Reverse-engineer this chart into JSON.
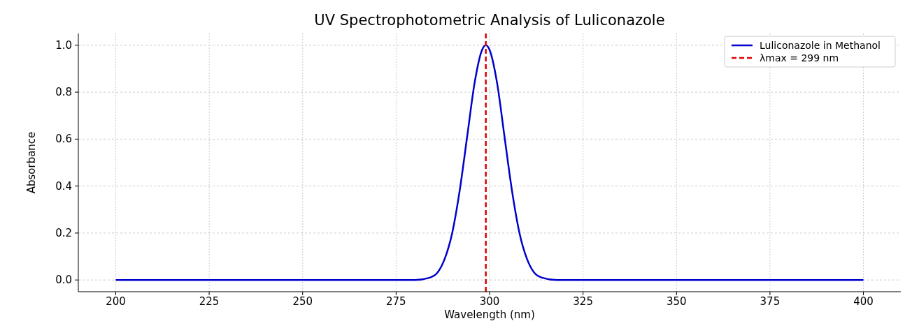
{
  "chart_data": {
    "type": "line",
    "title": "UV Spectrophotometric Analysis of Luliconazole",
    "xlabel": "Wavelength (nm)",
    "ylabel": "Absorbance",
    "x": [
      200,
      280,
      284,
      286,
      288,
      290,
      292,
      294,
      296,
      298,
      299,
      300,
      302,
      304,
      306,
      308,
      310,
      312,
      314,
      318,
      400
    ],
    "series": [
      {
        "name": "Luliconazole in Methanol",
        "color": "#0000cc",
        "values": [
          0,
          0,
          0.01,
          0.03,
          0.09,
          0.2,
          0.38,
          0.61,
          0.84,
          0.98,
          1,
          0.98,
          0.84,
          0.61,
          0.38,
          0.2,
          0.09,
          0.03,
          0.01,
          0,
          0
        ]
      },
      {
        "name": "λmax = 299 nm",
        "type": "line",
        "color": "#dd0000",
        "line_style": "dashed",
        "x": [
          299,
          299
        ],
        "values": [
          -0.05,
          1.05
        ]
      }
    ],
    "xlim": [
      190,
      410
    ],
    "xticks": [
      200,
      225,
      250,
      275,
      300,
      325,
      350,
      375,
      400
    ],
    "ylim": [
      -0.05,
      1.05
    ],
    "yticks": [
      {
        "value": 0,
        "label": "0.0"
      },
      {
        "value": 0.2,
        "label": "0.2"
      },
      {
        "value": 0.4,
        "label": "0.4"
      },
      {
        "value": 0.6,
        "label": "0.6"
      },
      {
        "value": 0.8,
        "label": "0.8"
      },
      {
        "value": 1,
        "label": "1.0"
      }
    ],
    "grid": true,
    "legend": "top right",
    "line_style": "solid",
    "marker": "none"
  }
}
